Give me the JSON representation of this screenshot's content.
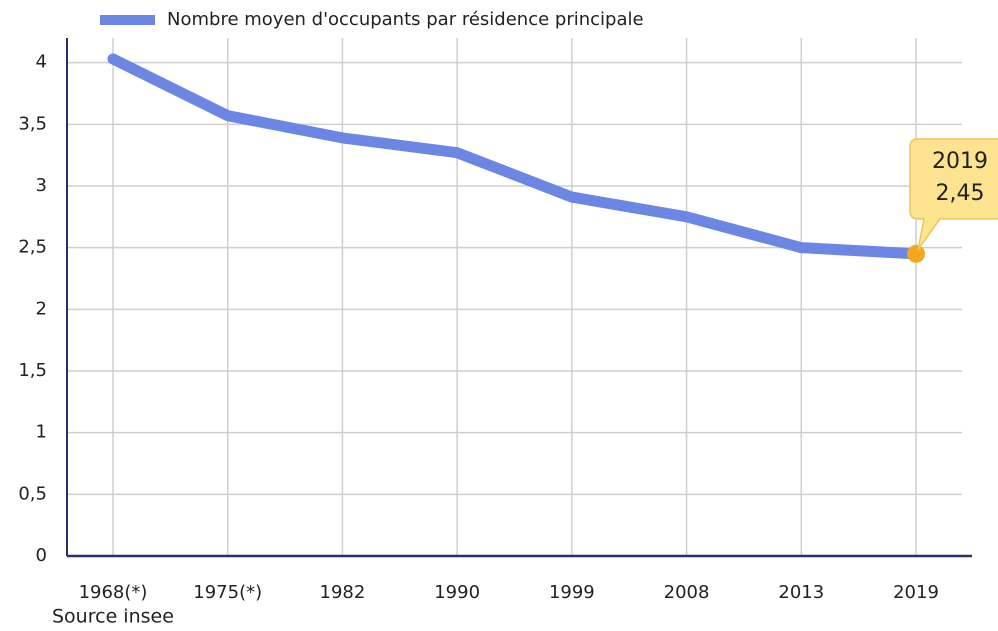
{
  "chart_data": {
    "type": "line",
    "legend": "Nombre moyen d'occupants par résidence principale",
    "categories": [
      "1968(*)",
      "1975(*)",
      "1982",
      "1990",
      "1999",
      "2008",
      "2013",
      "2019"
    ],
    "series": [
      {
        "name": "Nombre moyen d'occupants par résidence principale",
        "color": "#6b86e3",
        "values": [
          4.03,
          3.57,
          3.39,
          3.27,
          2.91,
          2.75,
          2.5,
          2.45
        ],
        "value_labels": [
          null,
          null,
          null,
          null,
          null,
          null,
          null,
          "2,45"
        ]
      }
    ],
    "highlight_color": "#f5a623",
    "ylim": [
      0,
      4.2
    ],
    "yticks": [
      0,
      {
        "value": 0.5,
        "label": "0,5"
      },
      1,
      {
        "value": 1.5,
        "label": "1,5"
      },
      2,
      {
        "value": 2.5,
        "label": "2,5"
      },
      3,
      {
        "value": 3.5,
        "label": "3,5"
      },
      4
    ],
    "grid": true,
    "source": "Source insee"
  }
}
